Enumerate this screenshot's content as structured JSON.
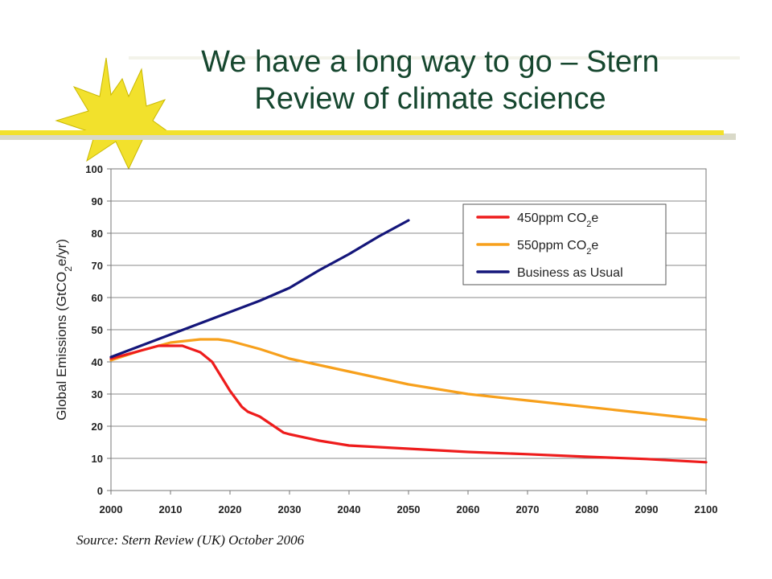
{
  "slide": {
    "title": "We have a long way to go – Stern Review of climate science",
    "source": "Source: Stern Review (UK) October 2006"
  },
  "colors": {
    "title": "#16472f",
    "accent_rule": "#f2e12c",
    "starburst": "#f2e12c"
  },
  "icons": {
    "logo": "starburst-icon"
  },
  "chart_data": {
    "type": "line",
    "ylabel_parts": [
      "Global Emissions (GtCO",
      "2",
      "e/yr)"
    ],
    "xlabel": "",
    "xlim": [
      2000,
      2100
    ],
    "ylim": [
      0,
      100
    ],
    "xticks": [
      2000,
      2010,
      2020,
      2030,
      2040,
      2050,
      2060,
      2070,
      2080,
      2090,
      2100
    ],
    "yticks": [
      0,
      10,
      20,
      30,
      40,
      50,
      60,
      70,
      80,
      90,
      100
    ],
    "grid": true,
    "legend_position": "top-right",
    "series": [
      {
        "name": "450ppm CO2e",
        "label_parts": [
          "450ppm CO",
          "2",
          "e"
        ],
        "color": "#ee1c1c",
        "x": [
          2000,
          2005,
          2008,
          2012,
          2015,
          2017,
          2019,
          2020,
          2022,
          2023,
          2025,
          2027,
          2029,
          2030,
          2035,
          2040,
          2045,
          2050,
          2060,
          2070,
          2080,
          2090,
          2100
        ],
        "y": [
          41,
          43.5,
          45,
          45,
          43,
          40,
          34,
          31,
          26,
          24.5,
          23,
          20.5,
          18,
          17.5,
          15.5,
          14,
          13.5,
          13,
          12,
          11.3,
          10.5,
          9.8,
          8.8
        ]
      },
      {
        "name": "550ppm CO2e",
        "label_parts": [
          "550ppm CO",
          "2",
          "e"
        ],
        "color": "#f7a01c",
        "x": [
          2000,
          2005,
          2010,
          2015,
          2018,
          2020,
          2025,
          2030,
          2035,
          2040,
          2045,
          2050,
          2055,
          2060,
          2070,
          2080,
          2090,
          2100
        ],
        "y": [
          40.5,
          43.5,
          46,
          47,
          47,
          46.5,
          44,
          41,
          39,
          37,
          35,
          33,
          31.5,
          30,
          28,
          26,
          24,
          22
        ]
      },
      {
        "name": "Business as Usual",
        "label_parts": [
          "Business as Usual",
          "",
          ""
        ],
        "color": "#14167a",
        "x": [
          2000,
          2005,
          2010,
          2015,
          2020,
          2025,
          2030,
          2035,
          2040,
          2045,
          2050
        ],
        "y": [
          41.5,
          45,
          48.5,
          52,
          55.5,
          59,
          63,
          68.5,
          73.5,
          79,
          84
        ]
      }
    ]
  }
}
